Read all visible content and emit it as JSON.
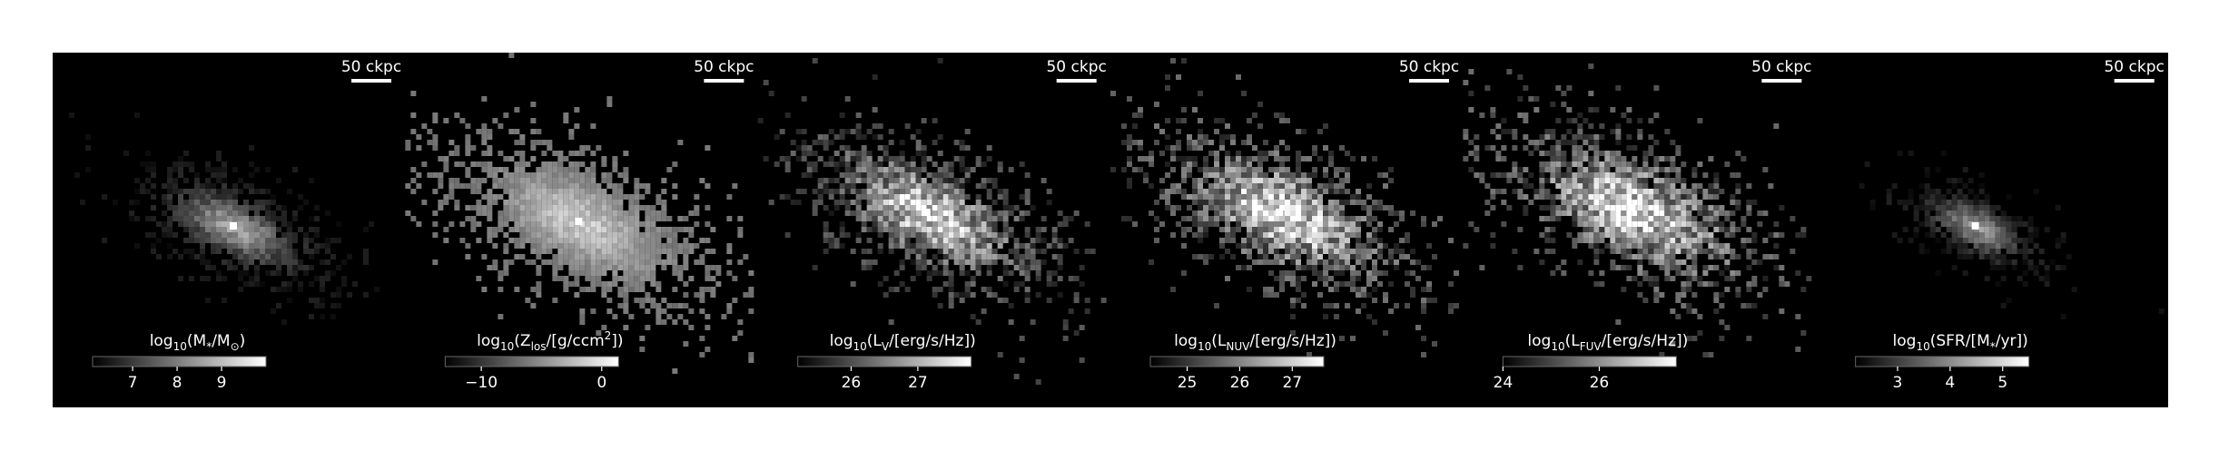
{
  "panels": [
    {
      "scale_label": "50 ckpc",
      "colorbar": {
        "label": [
          {
            "text": "log"
          },
          {
            "text": "10",
            "pos": "sub"
          },
          {
            "text": "(M"
          },
          {
            "text": "*",
            "pos": "sub"
          },
          {
            "text": "/M"
          },
          {
            "text": "⊙",
            "pos": "sub"
          },
          {
            "text": ")"
          }
        ],
        "lim": [
          6.1,
          10.0
        ],
        "ticks": [
          7,
          8,
          9
        ]
      }
    },
    {
      "scale_label": "50 ckpc",
      "colorbar": {
        "label": [
          {
            "text": "log"
          },
          {
            "text": "10",
            "pos": "sub"
          },
          {
            "text": "(Z"
          },
          {
            "text": "los",
            "pos": "sub"
          },
          {
            "text": "/[g/ccm"
          },
          {
            "text": "2",
            "pos": "sup"
          },
          {
            "text": "])"
          }
        ],
        "lim": [
          -13.0,
          1.4
        ],
        "ticks": [
          {
            "value": -10,
            "label": "−10"
          },
          0
        ]
      }
    },
    {
      "scale_label": "50 ckpc",
      "colorbar": {
        "label": [
          {
            "text": "log"
          },
          {
            "text": "10",
            "pos": "sub"
          },
          {
            "text": "(L"
          },
          {
            "text": "V",
            "pos": "sub"
          },
          {
            "text": "/[erg/s/Hz])"
          }
        ],
        "lim": [
          25.2,
          27.8
        ],
        "ticks": [
          26,
          27
        ]
      }
    },
    {
      "scale_label": "50 ckpc",
      "colorbar": {
        "label": [
          {
            "text": "log"
          },
          {
            "text": "10",
            "pos": "sub"
          },
          {
            "text": "(L"
          },
          {
            "text": "NUV",
            "pos": "sub"
          },
          {
            "text": "/[erg/s/Hz])"
          }
        ],
        "lim": [
          24.3,
          27.6
        ],
        "ticks": [
          25,
          26,
          27
        ]
      }
    },
    {
      "scale_label": "50 ckpc",
      "colorbar": {
        "label": [
          {
            "text": "log"
          },
          {
            "text": "10",
            "pos": "sub"
          },
          {
            "text": "(L"
          },
          {
            "text": "FUV",
            "pos": "sub"
          },
          {
            "text": "/[erg/s/Hz])"
          }
        ],
        "lim": [
          24.0,
          27.6
        ],
        "ticks": [
          24,
          26
        ]
      }
    },
    {
      "scale_label": "50 ckpc",
      "colorbar": {
        "label": [
          {
            "text": "log"
          },
          {
            "text": "10",
            "pos": "sub"
          },
          {
            "text": "(SFR/[M"
          },
          {
            "text": "*",
            "pos": "sub"
          },
          {
            "text": "/yr])"
          }
        ],
        "lim": [
          2.2,
          5.5
        ],
        "ticks": [
          3,
          4,
          5
        ]
      }
    }
  ]
}
